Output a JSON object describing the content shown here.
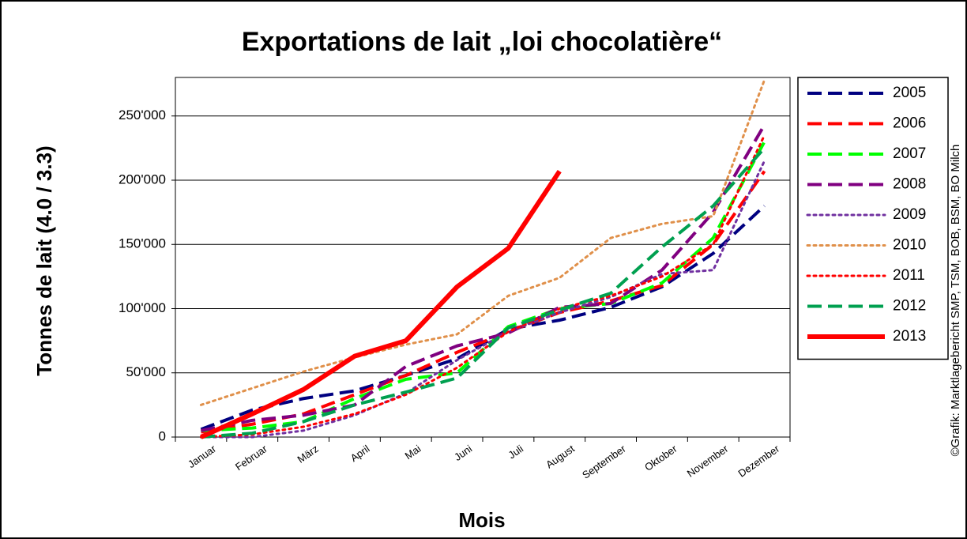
{
  "chart_data": {
    "type": "line",
    "title": "Exportations de lait „loi chocolatière“",
    "x_label": "Mois",
    "y_label": "Tonnes de lait (4.0 / 3.3)",
    "source": "©Grafik: Marktlagebericht SMP, TSM, BOB, BSM, BO Milch",
    "categories": [
      "Januar",
      "Februar",
      "März",
      "April",
      "Mai",
      "Juni",
      "Juli",
      "August",
      "September",
      "Oktober",
      "November",
      "Dezember"
    ],
    "ylim": [
      0,
      280000
    ],
    "yticks": [
      0,
      {
        "value": 50000,
        "label": "50'000"
      },
      {
        "value": 100000,
        "label": "100'000"
      },
      {
        "value": 150000,
        "label": "150'000"
      },
      {
        "value": 200000,
        "label": "200'000"
      },
      {
        "value": 250000,
        "label": "250'000"
      }
    ],
    "grid": true,
    "legend": "right",
    "series": [
      {
        "name": "2005",
        "color": "#000080",
        "style": "dashed",
        "values": [
          6000,
          21000,
          30000,
          36000,
          48000,
          61000,
          84000,
          91000,
          101000,
          117000,
          143000,
          180000
        ]
      },
      {
        "name": "2006",
        "color": "#ff0000",
        "style": "dashed",
        "values": [
          4000,
          10000,
          18000,
          33000,
          48000,
          66000,
          82000,
          97000,
          106000,
          118000,
          150000,
          207000
        ]
      },
      {
        "name": "2007",
        "color": "#00ff00",
        "style": "dashed",
        "values": [
          5000,
          7000,
          12000,
          30000,
          45000,
          50000,
          86000,
          100000,
          104000,
          120000,
          155000,
          230000
        ]
      },
      {
        "name": "2008",
        "color": "#800080",
        "style": "dashed",
        "values": [
          5000,
          13000,
          17000,
          25000,
          55000,
          71000,
          81000,
          101000,
          104000,
          130000,
          175000,
          243000
        ]
      },
      {
        "name": "2009",
        "color": "#7030a0",
        "style": "dotted",
        "values": [
          0,
          0,
          5000,
          17000,
          34000,
          60000,
          82000,
          97000,
          109000,
          127000,
          130000,
          215000
        ]
      },
      {
        "name": "2010",
        "color": "#e0904a",
        "style": "dotted",
        "values": [
          25000,
          38000,
          51000,
          62000,
          72000,
          80000,
          110000,
          124000,
          155000,
          166000,
          172000,
          278000
        ]
      },
      {
        "name": "2011",
        "color": "#ff0000",
        "style": "dotted",
        "values": [
          0,
          2000,
          8000,
          18000,
          33000,
          54000,
          82000,
          100000,
          110000,
          125000,
          150000,
          235000
        ]
      },
      {
        "name": "2012",
        "color": "#00a050",
        "style": "dashed",
        "values": [
          0,
          3000,
          12000,
          25000,
          35000,
          46000,
          85000,
          99000,
          112000,
          148000,
          180000,
          225000
        ]
      },
      {
        "name": "2013",
        "color": "#ff0000",
        "style": "solid",
        "values": [
          0,
          18000,
          37000,
          63000,
          75000,
          117000,
          147000,
          207000,
          null,
          null,
          null,
          null
        ]
      }
    ]
  }
}
